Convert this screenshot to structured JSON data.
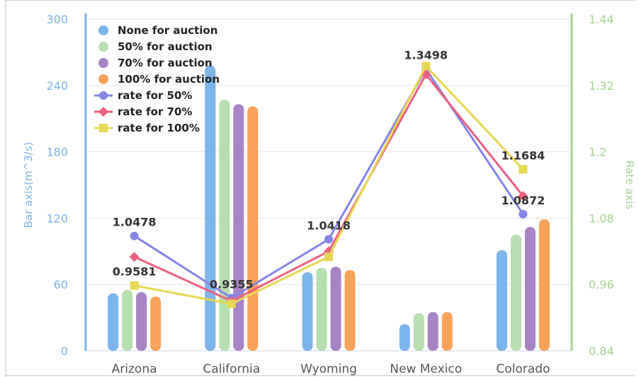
{
  "chart_data": {
    "type": "bar",
    "categories": [
      "Arizona",
      "California",
      "Wyoming",
      "New Mexico",
      "Colorado"
    ],
    "bar_series": [
      {
        "name": "None for auction",
        "color": "#7cb4ec",
        "values": [
          52,
          258,
          71,
          24,
          91
        ]
      },
      {
        "name": "50% for auction",
        "color": "#b5dfae",
        "values": [
          55,
          227,
          75,
          34,
          105
        ]
      },
      {
        "name": "70% for auction",
        "color": "#a883c5",
        "values": [
          53,
          223,
          76,
          35,
          112
        ]
      },
      {
        "name": "100% for auction",
        "color": "#f9a35a",
        "values": [
          49,
          221,
          73,
          35,
          119
        ]
      }
    ],
    "line_series": [
      {
        "name": "rate for 50%",
        "color": "#8484e6",
        "marker": "circle",
        "values": [
          1.0478,
          0.9355,
          1.0418,
          1.3498,
          1.0872
        ]
      },
      {
        "name": "rate for 70%",
        "color": "#ee5f80",
        "marker": "diamond",
        "values": [
          1.01,
          0.93,
          1.02,
          1.34,
          1.12
        ]
      },
      {
        "name": "rate for 100%",
        "color": "#e6d852",
        "marker": "square",
        "values": [
          0.9581,
          0.925,
          1.01,
          1.355,
          1.1684
        ]
      }
    ],
    "data_labels": [
      {
        "series": 0,
        "index": 0,
        "text": "1.0478"
      },
      {
        "series": 2,
        "index": 0,
        "text": "0.9581"
      },
      {
        "series": 0,
        "index": 1,
        "text": "0.9355"
      },
      {
        "series": 0,
        "index": 2,
        "text": "1.0418"
      },
      {
        "series": 0,
        "index": 3,
        "text": "1.3498"
      },
      {
        "series": 2,
        "index": 4,
        "text": "1.1684"
      },
      {
        "series": 0,
        "index": 4,
        "text": "1.0872"
      }
    ],
    "ylabel": "Bar axis(m^3/s)",
    "y2label": "Rate axis",
    "ylim": [
      0,
      300
    ],
    "y2lim": [
      0.84,
      1.44
    ],
    "yticks": [
      "0",
      "60",
      "120",
      "180",
      "240",
      "300"
    ],
    "y2ticks": [
      "0.84",
      "0.96",
      "1.08",
      "1.2",
      "1.32",
      "1.44"
    ],
    "left_axis_color": "#7cb4ec",
    "right_axis_color": "#a4d38f",
    "grid": true,
    "legend_position": "top-left"
  }
}
